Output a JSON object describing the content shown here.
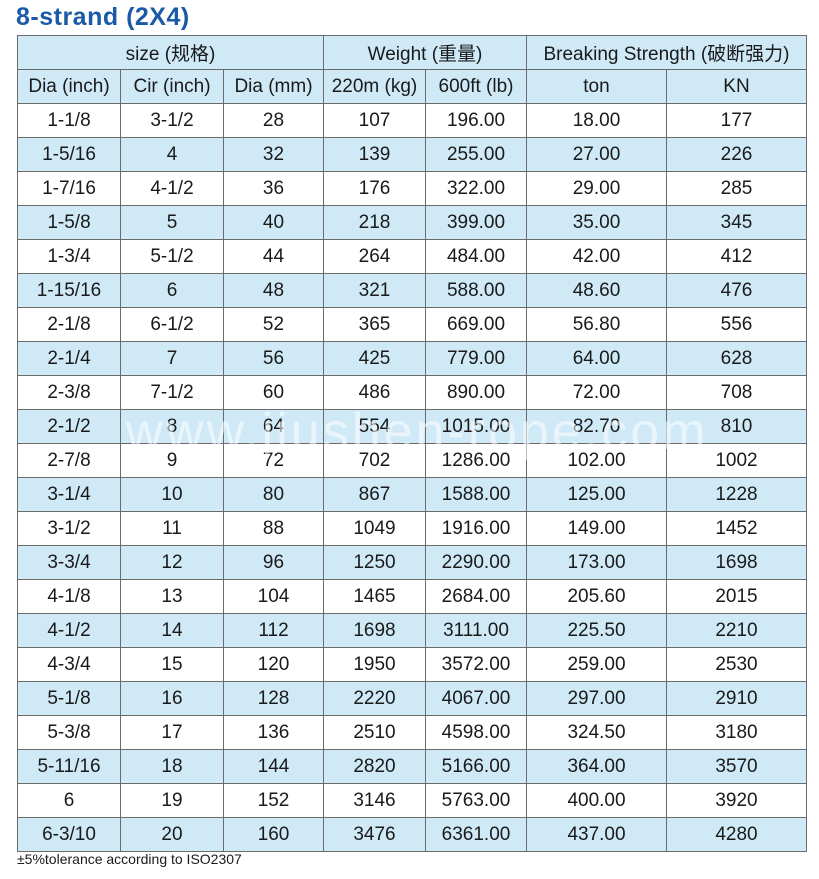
{
  "title": "8-strand (2X4)",
  "header": {
    "group_size": "size (规格)",
    "group_weight": "Weight (重量)",
    "group_strength": "Breaking Strength (破断强力)",
    "columns": [
      "Dia (inch)",
      "Cir (inch)",
      "Dia (mm)",
      "220m (kg)",
      "600ft (lb)",
      "ton",
      "KN"
    ]
  },
  "rows": [
    [
      "1-1/8",
      "3-1/2",
      "28",
      "107",
      "196.00",
      "18.00",
      "177"
    ],
    [
      "1-5/16",
      "4",
      "32",
      "139",
      "255.00",
      "27.00",
      "226"
    ],
    [
      "1-7/16",
      "4-1/2",
      "36",
      "176",
      "322.00",
      "29.00",
      "285"
    ],
    [
      "1-5/8",
      "5",
      "40",
      "218",
      "399.00",
      "35.00",
      "345"
    ],
    [
      "1-3/4",
      "5-1/2",
      "44",
      "264",
      "484.00",
      "42.00",
      "412"
    ],
    [
      "1-15/16",
      "6",
      "48",
      "321",
      "588.00",
      "48.60",
      "476"
    ],
    [
      "2-1/8",
      "6-1/2",
      "52",
      "365",
      "669.00",
      "56.80",
      "556"
    ],
    [
      "2-1/4",
      "7",
      "56",
      "425",
      "779.00",
      "64.00",
      "628"
    ],
    [
      "2-3/8",
      "7-1/2",
      "60",
      "486",
      "890.00",
      "72.00",
      "708"
    ],
    [
      "2-1/2",
      "8",
      "64",
      "554",
      "1015.00",
      "82.70",
      "810"
    ],
    [
      "2-7/8",
      "9",
      "72",
      "702",
      "1286.00",
      "102.00",
      "1002"
    ],
    [
      "3-1/4",
      "10",
      "80",
      "867",
      "1588.00",
      "125.00",
      "1228"
    ],
    [
      "3-1/2",
      "11",
      "88",
      "1049",
      "1916.00",
      "149.00",
      "1452"
    ],
    [
      "3-3/4",
      "12",
      "96",
      "1250",
      "2290.00",
      "173.00",
      "1698"
    ],
    [
      "4-1/8",
      "13",
      "104",
      "1465",
      "2684.00",
      "205.60",
      "2015"
    ],
    [
      "4-1/2",
      "14",
      "112",
      "1698",
      "3111.00",
      "225.50",
      "2210"
    ],
    [
      "4-3/4",
      "15",
      "120",
      "1950",
      "3572.00",
      "259.00",
      "2530"
    ],
    [
      "5-1/8",
      "16",
      "128",
      "2220",
      "4067.00",
      "297.00",
      "2910"
    ],
    [
      "5-3/8",
      "17",
      "136",
      "2510",
      "4598.00",
      "324.50",
      "3180"
    ],
    [
      "5-11/16",
      "18",
      "144",
      "2820",
      "5166.00",
      "364.00",
      "3570"
    ],
    [
      "6",
      "19",
      "152",
      "3146",
      "5763.00",
      "400.00",
      "3920"
    ],
    [
      "6-3/10",
      "20",
      "160",
      "3476",
      "6361.00",
      "437.00",
      "4280"
    ]
  ],
  "watermark": "www.jiushen-rope.com",
  "note": "±5%tolerance according to ISO2307",
  "colors": {
    "title": "#1a5aa6",
    "row_alt": "#cfe9f7",
    "border": "#6b6b6b"
  }
}
